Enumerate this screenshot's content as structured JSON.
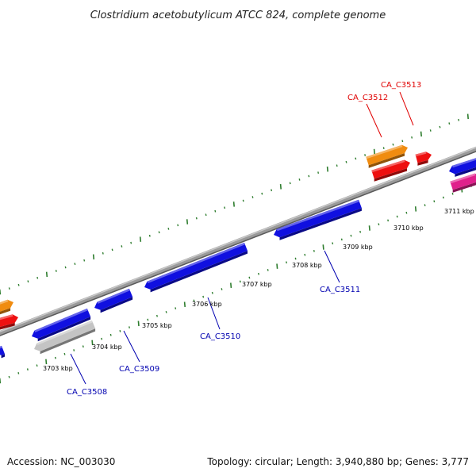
{
  "title": "Clostridium acetobutylicum ATCC 824, complete genome",
  "footer": {
    "accession": "Accession: NC_003030",
    "summary": "Topology: circular; Length: 3,940,880 bp; Genes: 3,777"
  },
  "colors": {
    "backbone": "#8a8a8a",
    "tick": "#2e7d2e",
    "reverse_gene": "#1010e0",
    "forward_gene": "#ee1010",
    "orange_feature": "#f08c10",
    "magenta_feature": "#e0208c",
    "gray_feature": "#c4c4c4",
    "forward_label": "#e00000",
    "reverse_label": "#0000b0"
  },
  "scale_labels": [
    "3703 kbp",
    "3704 kbp",
    "3705 kbp",
    "3706 kbp",
    "3707 kbp",
    "3708 kbp",
    "3709 kbp",
    "3710 kbp",
    "3711 kbp"
  ],
  "gene_labels": {
    "reverse": [
      "CA_C3508",
      "CA_C3509",
      "CA_C3510",
      "CA_C3511"
    ],
    "forward": [
      "CA_C3512",
      "CA_C3513"
    ]
  }
}
